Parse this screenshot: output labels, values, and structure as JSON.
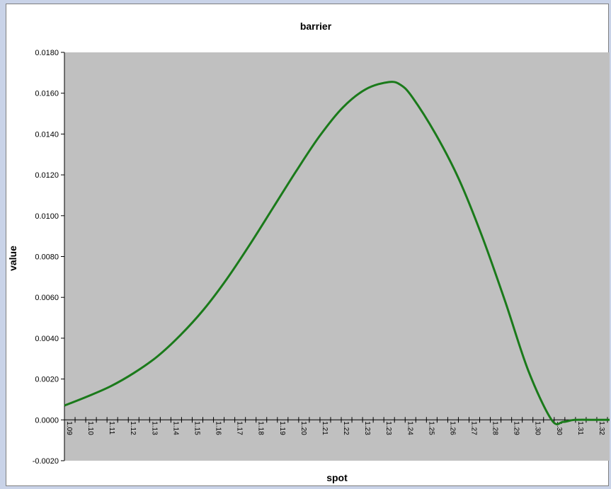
{
  "chart_data": {
    "type": "line",
    "title": "barrier",
    "xlabel": "spot",
    "ylabel": "value",
    "ylim": [
      -0.002,
      0.018
    ],
    "yticks": [
      "0.0180",
      "0.0160",
      "0.0140",
      "0.0120",
      "0.0100",
      "0.0080",
      "0.0060",
      "0.0040",
      "0.0020",
      "0.0000",
      "-0.0020"
    ],
    "ytick_values": [
      0.018,
      0.016,
      0.014,
      0.012,
      0.01,
      0.008,
      0.006,
      0.004,
      0.002,
      0.0,
      -0.002
    ],
    "xtick_labels": [
      "1.09",
      "1.10",
      "1.11",
      "1.12",
      "1.13",
      "1.14",
      "1.15",
      "1.16",
      "1.17",
      "1.18",
      "1.19",
      "1.20",
      "1.21",
      "1.22",
      "1.23",
      "1.23",
      "1.24",
      "1.25",
      "1.26",
      "1.27",
      "1.28",
      "1.29",
      "1.30",
      "1.30",
      "1.31",
      "1.32"
    ],
    "grid": false,
    "plot_background": "#c0c0c0",
    "series": [
      {
        "color": "#1a7a1a",
        "x": [
          1.09,
          1.1,
          1.11,
          1.12,
          1.13,
          1.14,
          1.15,
          1.16,
          1.17,
          1.18,
          1.19,
          1.2,
          1.21,
          1.22,
          1.23,
          1.235,
          1.24,
          1.25,
          1.26,
          1.27,
          1.28,
          1.29,
          1.3,
          1.305,
          1.31,
          1.32,
          1.325
        ],
        "values": [
          0.0007,
          0.00115,
          0.00165,
          0.0023,
          0.0031,
          0.00415,
          0.0054,
          0.0069,
          0.0086,
          0.0104,
          0.0122,
          0.0139,
          0.0153,
          0.0162,
          0.01655,
          0.0164,
          0.0158,
          0.014,
          0.0118,
          0.009,
          0.0058,
          0.0024,
          0.0,
          -0.0001,
          0.0,
          0.0,
          0.0
        ]
      }
    ]
  }
}
